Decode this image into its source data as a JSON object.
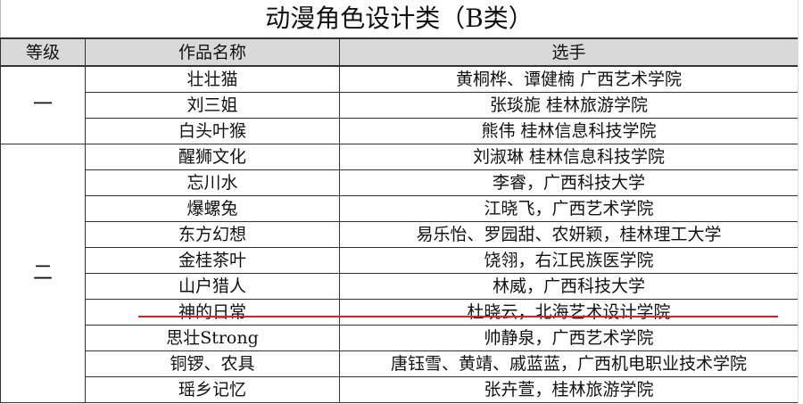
{
  "title": "动漫角色设计类（B类）",
  "headers": {
    "grade": "等级",
    "work": "作品名称",
    "players": "选手"
  },
  "groups": [
    {
      "grade": "一",
      "rows": [
        {
          "work": "壮壮猫",
          "players": "黄桐桦、谭健楠 广西艺术学院"
        },
        {
          "work": "刘三姐",
          "players": "张琰旎 桂林旅游学院"
        },
        {
          "work": "白头叶猴",
          "players": "熊伟 桂林信息科技学院"
        }
      ]
    },
    {
      "grade": "二",
      "rows": [
        {
          "work": "醒狮文化",
          "players": "刘淑琳 桂林信息科技学院"
        },
        {
          "work": "忘川水",
          "players": "李睿，广西科技大学"
        },
        {
          "work": "爆螺兔",
          "players": "江晓飞，广西艺术学院"
        },
        {
          "work": "东方幻想",
          "players": "易乐怡、罗园甜、农妍颖，桂林理工大学"
        },
        {
          "work": "金桂茶叶",
          "players": "饶翎，右江民族医学院"
        },
        {
          "work": "山户猎人",
          "players": "林威，广西科技大学"
        },
        {
          "work": "神的日常",
          "players": "杜晓云，北海艺术设计学院"
        },
        {
          "work": "思壮Strong",
          "players": "帅静泉，广西艺术学院"
        },
        {
          "work": "铜锣、农具",
          "players": "唐钰雪、黄靖、戚蓝蓝，广西机电职业技术学院"
        },
        {
          "work": "瑶乡记忆",
          "players": "张卉萱，桂林旅游学院"
        }
      ]
    }
  ],
  "annotation_color": "#e02020"
}
